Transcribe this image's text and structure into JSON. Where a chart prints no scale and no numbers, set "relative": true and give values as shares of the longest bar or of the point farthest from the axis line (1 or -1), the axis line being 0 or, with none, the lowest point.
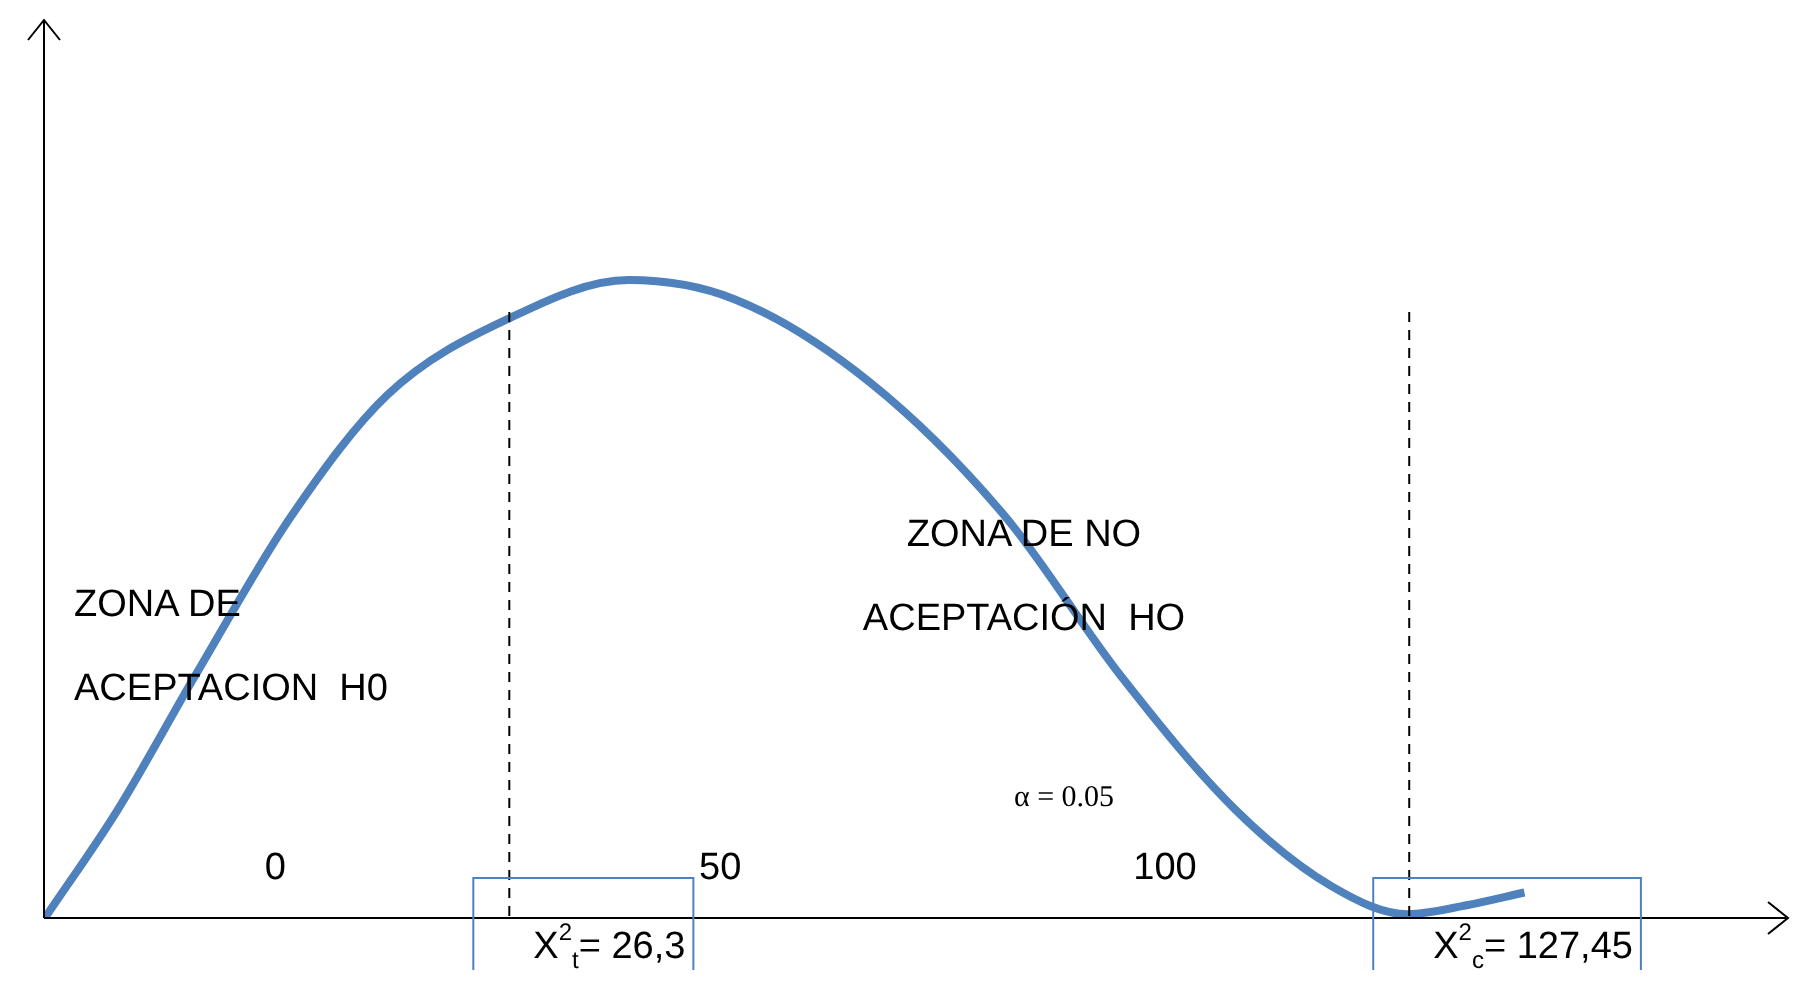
{
  "chart_data": {
    "type": "line",
    "relative": true,
    "x": [
      -25.9,
      -17.7,
      -9.0,
      1.8,
      12.6,
      26.3,
      39.7,
      51.6,
      66.8,
      82.0,
      95.0,
      107.9,
      118.7,
      127.3,
      133.9,
      140.4
    ],
    "series": [
      {
        "color": "#4f81bd",
        "values": [
          0,
          0.17,
          0.38,
          0.63,
          0.82,
          0.94,
          1,
          0.97,
          0.84,
          0.63,
          0.38,
          0.17,
          0.05,
          0.006,
          0.02,
          0.04
        ]
      }
    ],
    "xlim": [
      -26,
      168
    ],
    "xticks": [
      0,
      50,
      100
    ],
    "ref_lines": [
      {
        "axis": "x",
        "value": 26.3,
        "label": "X$^{2}$$_{t}$= 26,3",
        "color": "#000000",
        "line_style": "dashed"
      },
      {
        "axis": "x",
        "value": 127.45,
        "label": "X$^{2}$$_{c}$= 127,45",
        "color": "#000000",
        "line_style": "dashed"
      }
    ],
    "annotations": [
      "ZONA DE ACEPTACION  H0",
      "ZONA DE NO ACEPTACIÓN  HO",
      "α = 0.05"
    ],
    "grid": false,
    "legend": false,
    "marker": "none",
    "line_style": "solid"
  }
}
